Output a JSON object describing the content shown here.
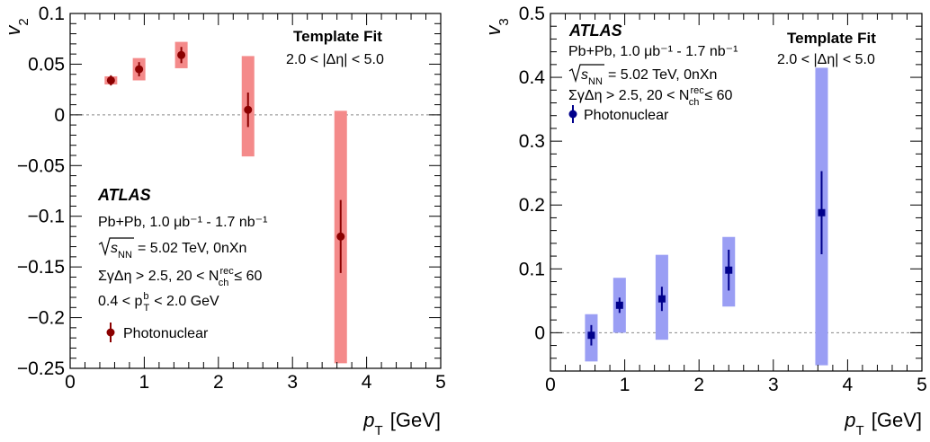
{
  "chart_data": [
    {
      "type": "scatter",
      "ylabel_var": "v",
      "ylabel_sub": "2",
      "xlabel": "p",
      "xlabel_sub": "T",
      "xlabel_unit": " [GeV]",
      "xlim": [
        0,
        5
      ],
      "ylim": [
        -0.25,
        0.1
      ],
      "x_ticks": [
        "0",
        "1",
        "2",
        "3",
        "4",
        "5"
      ],
      "y_ticks": [
        "0.1",
        "0.05",
        "0",
        "−0.05",
        "−0.1",
        "−0.15",
        "−0.2",
        "−0.25"
      ],
      "marker": "circle",
      "colors": {
        "marker": "#8b0000",
        "syst": "#f48a8a",
        "zero_line": "#888888"
      },
      "series": [
        {
          "name": "Photonuclear",
          "points": [
            {
              "x": 0.55,
              "y": 0.034,
              "stat": 0.005,
              "syst_lo": 0.03,
              "syst_hi": 0.038,
              "syst_w": 0.17
            },
            {
              "x": 0.93,
              "y": 0.045,
              "stat": 0.007,
              "syst_lo": 0.034,
              "syst_hi": 0.056,
              "syst_w": 0.17
            },
            {
              "x": 1.5,
              "y": 0.059,
              "stat": 0.008,
              "syst_lo": 0.046,
              "syst_hi": 0.072,
              "syst_w": 0.17
            },
            {
              "x": 2.4,
              "y": 0.005,
              "stat": 0.017,
              "syst_lo": -0.041,
              "syst_hi": 0.058,
              "syst_w": 0.17
            },
            {
              "x": 3.65,
              "y": -0.12,
              "stat": 0.036,
              "syst_lo": -0.245,
              "syst_hi": 0.004,
              "syst_w": 0.17
            }
          ]
        }
      ],
      "annotations": {
        "template": "Template Fit",
        "eta_cut": "2.0 < |Δη| < 5.0",
        "atlas": "ATLAS",
        "lumi": "Pb+Pb, 1.0 μb⁻¹ - 1.7 nb⁻¹",
        "sqrts_energy": "= 5.02 TeV, 0nXn",
        "gap_cut": "ΣγΔη > 2.5,  20 < N",
        "nch_sup": "rec",
        "nch_sub": "ch",
        "nch_tail": "≤ 60",
        "pt_cut_pre": "0.4 < p",
        "pt_sup": "b",
        "pt_sub": "T",
        "pt_cut_post": "< 2.0 GeV",
        "legend": "Photonuclear"
      }
    },
    {
      "type": "scatter",
      "ylabel_var": "v",
      "ylabel_sub": "3",
      "xlabel": "p",
      "xlabel_sub": "T",
      "xlabel_unit": " [GeV]",
      "xlim": [
        0,
        5
      ],
      "ylim": [
        -0.06,
        0.5
      ],
      "x_ticks": [
        "0",
        "1",
        "2",
        "3",
        "4",
        "5"
      ],
      "y_ticks": [
        "0.5",
        "0.4",
        "0.3",
        "0.2",
        "0.1",
        "0"
      ],
      "marker": "square",
      "colors": {
        "marker": "#00008b",
        "syst": "#9a9ef4",
        "zero_line": "#888888"
      },
      "series": [
        {
          "name": "Photonuclear",
          "points": [
            {
              "x": 0.55,
              "y": -0.004,
              "stat": 0.016,
              "syst_lo": -0.045,
              "syst_hi": 0.029,
              "syst_w": 0.17
            },
            {
              "x": 0.93,
              "y": 0.043,
              "stat": 0.012,
              "syst_lo": 0.0,
              "syst_hi": 0.086,
              "syst_w": 0.17
            },
            {
              "x": 1.5,
              "y": 0.053,
              "stat": 0.019,
              "syst_lo": -0.011,
              "syst_hi": 0.122,
              "syst_w": 0.17
            },
            {
              "x": 2.4,
              "y": 0.098,
              "stat": 0.032,
              "syst_lo": 0.041,
              "syst_hi": 0.15,
              "syst_w": 0.17
            },
            {
              "x": 3.65,
              "y": 0.188,
              "stat": 0.065,
              "syst_lo": -0.051,
              "syst_hi": 0.415,
              "syst_w": 0.17
            }
          ]
        }
      ],
      "annotations": {
        "template": "Template Fit",
        "eta_cut": "2.0 < |Δη| < 5.0",
        "atlas": "ATLAS",
        "lumi": "Pb+Pb, 1.0 μb⁻¹ - 1.7 nb⁻¹",
        "sqrts_energy": "= 5.02 TeV, 0nXn",
        "gap_cut": "ΣγΔη > 2.5, 20 < N",
        "nch_sup": "rec",
        "nch_sub": "ch",
        "nch_tail": "≤ 60",
        "legend": "Photonuclear"
      }
    }
  ]
}
